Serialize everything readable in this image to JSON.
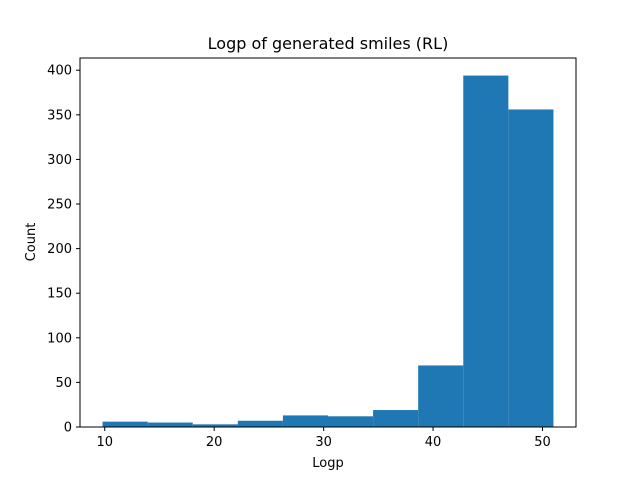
{
  "chart_data": {
    "type": "bar",
    "title": "Logp of generated smiles (RL)",
    "xlabel": "Logp",
    "ylabel": "Count",
    "bin_edges": [
      9.8,
      13.92,
      18.04,
      22.16,
      26.28,
      30.4,
      34.52,
      38.64,
      42.76,
      46.88,
      51.0
    ],
    "values": [
      6,
      5,
      3,
      7,
      13,
      12,
      19,
      69,
      394,
      356
    ],
    "xlim": [
      7.74,
      53.06
    ],
    "ylim": [
      0,
      413.7
    ],
    "xticks": [
      10,
      20,
      30,
      40,
      50
    ],
    "yticks": [
      0,
      50,
      100,
      150,
      200,
      250,
      300,
      350,
      400
    ],
    "bar_color": "#1f77b4",
    "grid": false,
    "legend": "none"
  }
}
